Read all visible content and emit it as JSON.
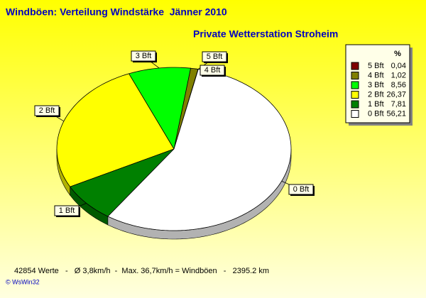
{
  "chart_data": {
    "type": "pie",
    "title": "Windböen: Verteilung Windstärke  Jänner 2010",
    "subtitle": "Private Wetterstation Stroheim",
    "legend_header": "%",
    "categories": [
      "5 Bft",
      "4 Bft",
      "3 Bft",
      "2 Bft",
      "1 Bft",
      "0 Bft"
    ],
    "values": [
      0.04,
      1.02,
      8.56,
      26.37,
      7.81,
      56.21
    ],
    "value_labels": [
      "0,04",
      "1,02",
      "8,56",
      "26,37",
      "7,81",
      "56,21"
    ],
    "colors": [
      "#800000",
      "#808000",
      "#00ff00",
      "#ffff00",
      "#008000",
      "#ffffff"
    ],
    "legend": "top-right",
    "footer": "42854 Werte   -   Ø 3,8km/h  -  Max. 36,7km/h = Windböen   -   2395.2 km",
    "credit": "© WsWin32"
  }
}
